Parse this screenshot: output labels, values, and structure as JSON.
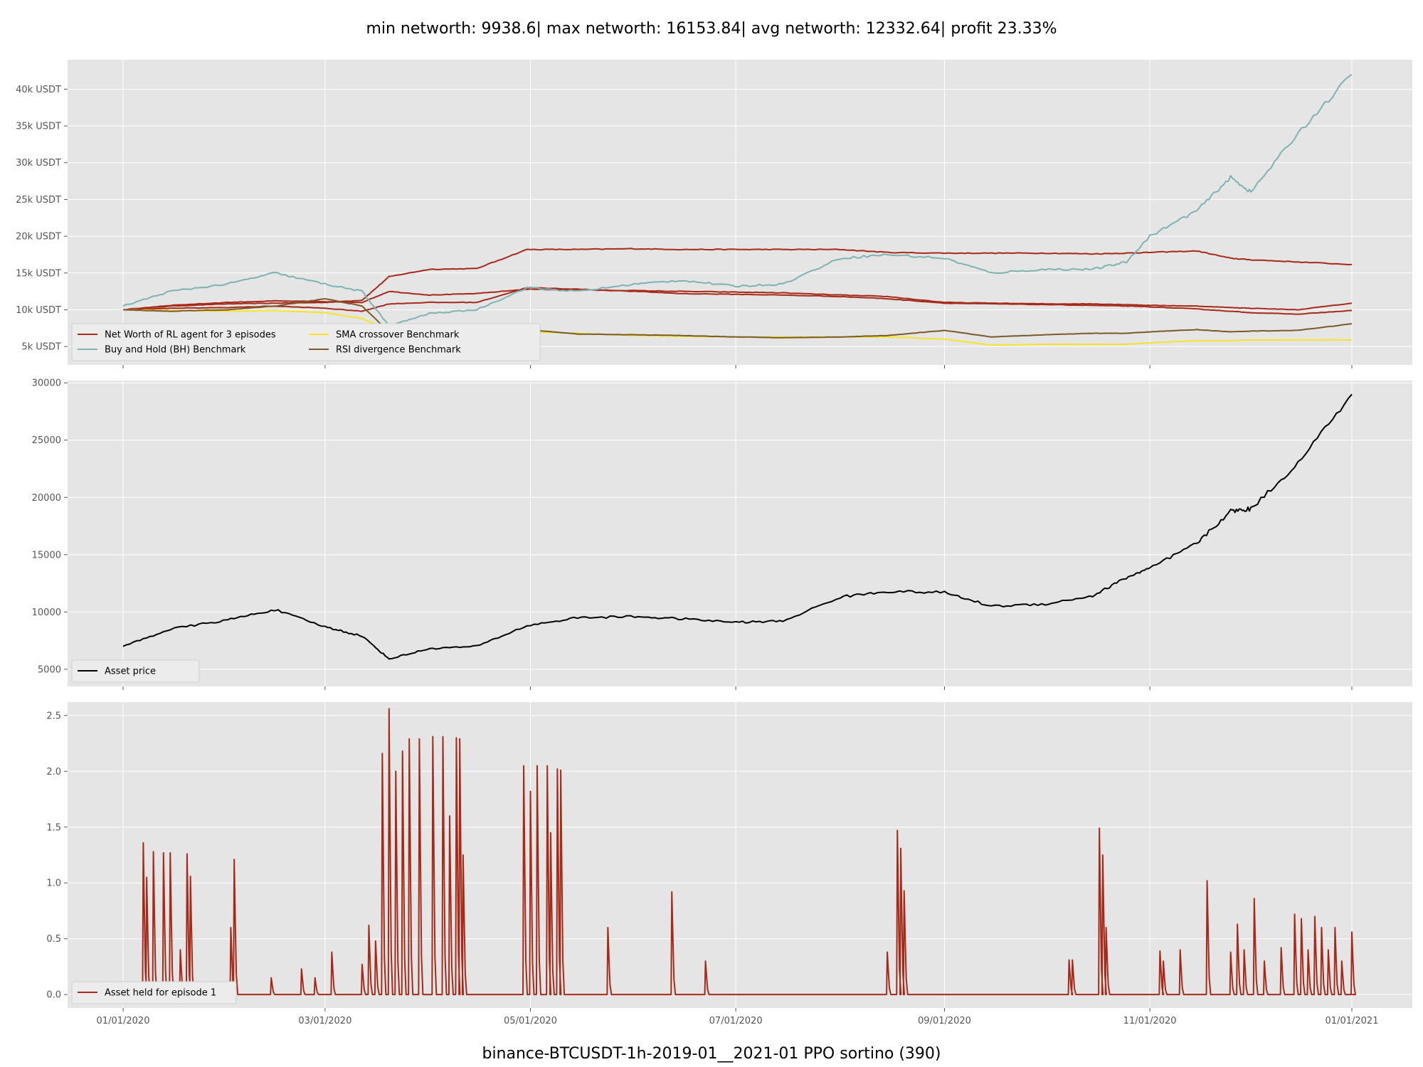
{
  "figure": {
    "suptitle": "min networth: 9938.6| max networth: 16153.84| avg networth: 12332.64| profit 23.33%",
    "footer": "binance-BTCUSDT-1h-2019-01__2021-01 PPO sortino  (390)"
  },
  "colors": {
    "panel_bg": "#e5e5e5",
    "grid": "#ffffff",
    "rl_agent": "#a52a1a",
    "buy_hold": "#7fb2b4",
    "sma": "#f5e42a",
    "rsi": "#7a5a28",
    "asset_price": "#000000",
    "asset_held": "#a52a1a"
  },
  "chart_data": [
    {
      "type": "line",
      "title": "",
      "x": [
        "2020-01-01",
        "2020-01-15",
        "2020-02-01",
        "2020-02-15",
        "2020-03-01",
        "2020-03-12",
        "2020-03-20",
        "2020-04-01",
        "2020-04-15",
        "2020-04-30",
        "2020-05-15",
        "2020-06-01",
        "2020-06-15",
        "2020-07-01",
        "2020-07-15",
        "2020-08-01",
        "2020-08-15",
        "2020-09-01",
        "2020-09-15",
        "2020-10-01",
        "2020-10-15",
        "2020-10-25",
        "2020-11-01",
        "2020-11-15",
        "2020-11-25",
        "2020-12-01",
        "2020-12-15",
        "2020-12-31"
      ],
      "x_ticks": [
        "01/01/2020",
        "03/01/2020",
        "05/01/2020",
        "07/01/2020",
        "09/01/2020",
        "11/01/2020",
        "01/01/2021"
      ],
      "y_ticks": [
        "5k USDT",
        "10k USDT",
        "15k USDT",
        "20k USDT",
        "25k USDT",
        "30k USDT",
        "35k USDT",
        "40k USDT"
      ],
      "ylim": [
        2500,
        44000
      ],
      "grid": true,
      "legend_position": "lower-left",
      "series": [
        {
          "name": "Net Worth of RL agent for 3 episodes",
          "color_key": "rl_agent",
          "values": [
            10000,
            10500,
            10800,
            10900,
            11000,
            11300,
            14500,
            15500,
            15600,
            18200,
            18200,
            18300,
            18200,
            18200,
            18200,
            18200,
            17800,
            17700,
            17700,
            17700,
            17600,
            17700,
            17800,
            18000,
            17000,
            16800,
            16500,
            16150
          ]
        },
        {
          "name": "",
          "color_key": "rl_agent",
          "values": [
            10000,
            10600,
            11000,
            11200,
            11100,
            11000,
            12500,
            12000,
            12200,
            12800,
            12700,
            12600,
            12500,
            12400,
            12300,
            12000,
            11800,
            11000,
            10900,
            10800,
            10800,
            10700,
            10600,
            10500,
            10300,
            10200,
            10000,
            10900
          ]
        },
        {
          "name": "",
          "color_key": "rl_agent",
          "values": [
            10000,
            10200,
            10300,
            10500,
            10200,
            9800,
            10800,
            11000,
            11000,
            13000,
            12800,
            12500,
            12200,
            12100,
            12000,
            11800,
            11500,
            10900,
            10800,
            10700,
            10600,
            10500,
            10400,
            10100,
            9800,
            9600,
            9400,
            9900
          ]
        },
        {
          "name": "Buy and Hold (BH) Benchmark",
          "color_key": "buy_hold",
          "values": [
            10500,
            12500,
            13500,
            15000,
            13500,
            12500,
            7800,
            9500,
            10000,
            13000,
            12500,
            13500,
            14000,
            13200,
            13500,
            17000,
            17500,
            17000,
            15000,
            15500,
            15500,
            16500,
            20000,
            23500,
            28000,
            26000,
            34000,
            42000
          ]
        },
        {
          "name": "SMA crossover Benchmark",
          "color_key": "sma",
          "values": [
            10000,
            9900,
            9800,
            9900,
            9600,
            8800,
            7300,
            7100,
            7000,
            7000,
            6800,
            6500,
            6400,
            6300,
            6300,
            6300,
            6300,
            6000,
            5200,
            5300,
            5300,
            5300,
            5500,
            5800,
            5800,
            5900,
            5900,
            5900
          ]
        },
        {
          "name": "RSI divergence Benchmark",
          "color_key": "rsi",
          "values": [
            10000,
            9800,
            10000,
            10500,
            11500,
            10500,
            7000,
            7500,
            7500,
            7300,
            6700,
            6600,
            6500,
            6300,
            6200,
            6300,
            6500,
            7200,
            6300,
            6600,
            6800,
            6800,
            7000,
            7300,
            7000,
            7100,
            7200,
            8100
          ]
        }
      ]
    },
    {
      "type": "line",
      "x": [
        "2020-01-01",
        "2020-01-15",
        "2020-02-01",
        "2020-02-15",
        "2020-03-01",
        "2020-03-12",
        "2020-03-20",
        "2020-04-01",
        "2020-04-15",
        "2020-04-30",
        "2020-05-15",
        "2020-06-01",
        "2020-06-15",
        "2020-07-01",
        "2020-07-15",
        "2020-08-01",
        "2020-08-15",
        "2020-09-01",
        "2020-09-15",
        "2020-10-01",
        "2020-10-15",
        "2020-10-25",
        "2020-11-01",
        "2020-11-15",
        "2020-11-25",
        "2020-12-01",
        "2020-12-15",
        "2020-12-31"
      ],
      "x_ticks": [
        "01/01/2020",
        "03/01/2020",
        "05/01/2020",
        "07/01/2020",
        "09/01/2020",
        "11/01/2020",
        "01/01/2021"
      ],
      "y_ticks": [
        "5000",
        "10000",
        "15000",
        "20000",
        "25000",
        "30000"
      ],
      "ylim": [
        3500,
        30200
      ],
      "grid": true,
      "legend_position": "lower-left",
      "series": [
        {
          "name": "Asset price",
          "color_key": "asset_price",
          "values": [
            7000,
            8500,
            9300,
            10200,
            8700,
            7900,
            5900,
            6800,
            7000,
            8800,
            9500,
            9600,
            9400,
            9100,
            9200,
            11300,
            11800,
            11700,
            10500,
            10700,
            11400,
            13000,
            13800,
            16000,
            18800,
            19000,
            23000,
            29000
          ]
        }
      ]
    },
    {
      "type": "line",
      "x_ticks": [
        "01/01/2020",
        "03/01/2020",
        "05/01/2020",
        "07/01/2020",
        "09/01/2020",
        "11/01/2020",
        "01/01/2021"
      ],
      "y_ticks": [
        "0.0",
        "0.5",
        "1.0",
        "1.5",
        "2.0",
        "2.5"
      ],
      "ylim": [
        -0.12,
        2.62
      ],
      "grid": true,
      "legend_position": "lower-left",
      "series": [
        {
          "name": "Asset held for episode 1",
          "color_key": "asset_held",
          "spikes": [
            {
              "x": "2020-01-07",
              "y": 1.36
            },
            {
              "x": "2020-01-08",
              "y": 1.05
            },
            {
              "x": "2020-01-10",
              "y": 1.28
            },
            {
              "x": "2020-01-13",
              "y": 1.27
            },
            {
              "x": "2020-01-15",
              "y": 1.27
            },
            {
              "x": "2020-01-18",
              "y": 0.4
            },
            {
              "x": "2020-01-20",
              "y": 1.26
            },
            {
              "x": "2020-01-21",
              "y": 1.06
            },
            {
              "x": "2020-01-26",
              "y": 0.1
            },
            {
              "x": "2020-02-02",
              "y": 0.6
            },
            {
              "x": "2020-02-03",
              "y": 1.21
            },
            {
              "x": "2020-02-14",
              "y": 0.15
            },
            {
              "x": "2020-02-23",
              "y": 0.23
            },
            {
              "x": "2020-02-27",
              "y": 0.15
            },
            {
              "x": "2020-03-03",
              "y": 0.38
            },
            {
              "x": "2020-03-12",
              "y": 0.27
            },
            {
              "x": "2020-03-14",
              "y": 0.62
            },
            {
              "x": "2020-03-16",
              "y": 0.48
            },
            {
              "x": "2020-03-18",
              "y": 2.16
            },
            {
              "x": "2020-03-20",
              "y": 2.56
            },
            {
              "x": "2020-03-22",
              "y": 2.0
            },
            {
              "x": "2020-03-24",
              "y": 2.18
            },
            {
              "x": "2020-03-26",
              "y": 2.29
            },
            {
              "x": "2020-03-29",
              "y": 2.29
            },
            {
              "x": "2020-04-02",
              "y": 2.31
            },
            {
              "x": "2020-04-05",
              "y": 2.31
            },
            {
              "x": "2020-04-07",
              "y": 1.6
            },
            {
              "x": "2020-04-09",
              "y": 2.3
            },
            {
              "x": "2020-04-10",
              "y": 2.29
            },
            {
              "x": "2020-04-11",
              "y": 1.25
            },
            {
              "x": "2020-04-29",
              "y": 2.05
            },
            {
              "x": "2020-05-01",
              "y": 1.82
            },
            {
              "x": "2020-05-03",
              "y": 2.05
            },
            {
              "x": "2020-05-06",
              "y": 2.05
            },
            {
              "x": "2020-05-07",
              "y": 1.45
            },
            {
              "x": "2020-05-09",
              "y": 2.02
            },
            {
              "x": "2020-05-10",
              "y": 2.01
            },
            {
              "x": "2020-05-24",
              "y": 0.6
            },
            {
              "x": "2020-06-12",
              "y": 0.92
            },
            {
              "x": "2020-06-22",
              "y": 0.3
            },
            {
              "x": "2020-08-15",
              "y": 0.38
            },
            {
              "x": "2020-08-18",
              "y": 1.47
            },
            {
              "x": "2020-08-19",
              "y": 1.31
            },
            {
              "x": "2020-08-20",
              "y": 0.93
            },
            {
              "x": "2020-10-08",
              "y": 0.31
            },
            {
              "x": "2020-10-09",
              "y": 0.31
            },
            {
              "x": "2020-10-17",
              "y": 1.49
            },
            {
              "x": "2020-10-18",
              "y": 1.25
            },
            {
              "x": "2020-10-19",
              "y": 0.6
            },
            {
              "x": "2020-11-04",
              "y": 0.39
            },
            {
              "x": "2020-11-05",
              "y": 0.3
            },
            {
              "x": "2020-11-10",
              "y": 0.4
            },
            {
              "x": "2020-11-18",
              "y": 1.02
            },
            {
              "x": "2020-11-25",
              "y": 0.38
            },
            {
              "x": "2020-11-27",
              "y": 0.63
            },
            {
              "x": "2020-11-29",
              "y": 0.4
            },
            {
              "x": "2020-12-02",
              "y": 0.86
            },
            {
              "x": "2020-12-05",
              "y": 0.3
            },
            {
              "x": "2020-12-10",
              "y": 0.42
            },
            {
              "x": "2020-12-14",
              "y": 0.72
            },
            {
              "x": "2020-12-16",
              "y": 0.68
            },
            {
              "x": "2020-12-18",
              "y": 0.4
            },
            {
              "x": "2020-12-20",
              "y": 0.7
            },
            {
              "x": "2020-12-22",
              "y": 0.6
            },
            {
              "x": "2020-12-24",
              "y": 0.4
            },
            {
              "x": "2020-12-26",
              "y": 0.6
            },
            {
              "x": "2020-12-28",
              "y": 0.3
            },
            {
              "x": "2020-12-31",
              "y": 0.56
            }
          ]
        }
      ]
    }
  ]
}
